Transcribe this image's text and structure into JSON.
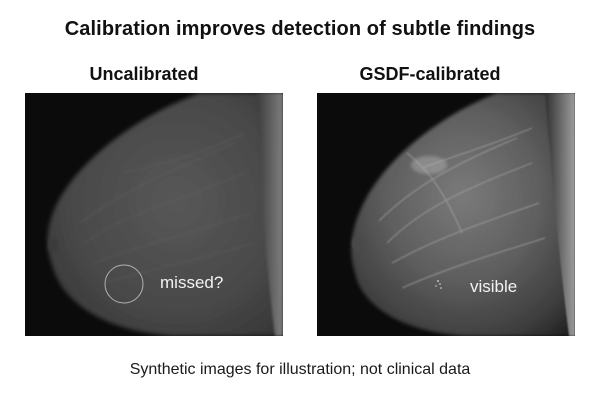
{
  "title": "Calibration improves detection of subtle findings",
  "panels": [
    {
      "label": "Uncalibrated",
      "annotation": "missed?",
      "annotation_color": "#f2f2f2"
    },
    {
      "label": "GSDF-calibrated",
      "annotation": "visible",
      "annotation_color": "#f2f2f2"
    }
  ],
  "caption": "Synthetic images for illustration; not clinical data",
  "colors": {
    "background": "#ffffff",
    "image_background": "#0b0b0b",
    "tissue_uncalibrated": "#5a5a5a",
    "tissue_calibrated": "#6e6e6e",
    "circle_marker": "#bdbdbd"
  }
}
